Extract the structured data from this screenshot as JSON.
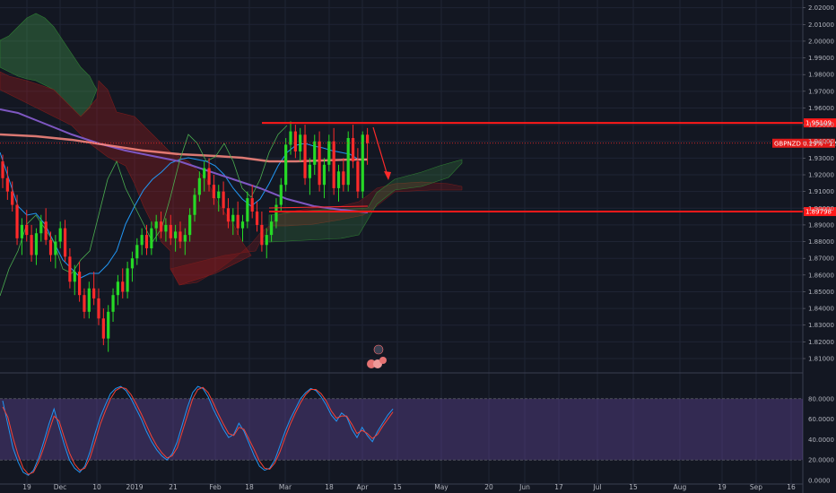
{
  "chart_data": {
    "type": "candlestick",
    "symbol_label": "GBPNZD 0.29% · 1.93891",
    "price_axis": {
      "range": [
        1.805,
        2.025
      ],
      "ticks": [
        "2.02000",
        "2.01000",
        "2.00000",
        "1.99000",
        "1.98000",
        "1.97000",
        "1.96000",
        "1.95000",
        "1.94000",
        "1.93000",
        "1.92000",
        "1.91000",
        "1.90000",
        "1.89000",
        "1.88000",
        "1.87000",
        "1.86000",
        "1.85000",
        "1.84000",
        "1.83000",
        "1.82000",
        "1.81000"
      ]
    },
    "time_axis": {
      "labels": [
        "19",
        "Dec",
        "10",
        "2019",
        "21",
        "Feb",
        "18",
        "Mar",
        "18",
        "Apr",
        "15",
        "May",
        "20",
        "Jun",
        "17",
        "Jul",
        "15",
        "Aug",
        "19",
        "Sep",
        "16"
      ]
    },
    "levels": [
      {
        "name": "resistance",
        "value": 1.95109,
        "label": "1.95109",
        "color": "#ff1a1a"
      },
      {
        "name": "support",
        "value": 1.89798,
        "label": "1.89798",
        "color": "#ff1a1a"
      }
    ],
    "candles": [
      [
        1.928,
        1.932,
        1.912,
        1.918
      ],
      [
        1.918,
        1.925,
        1.905,
        1.91
      ],
      [
        1.91,
        1.916,
        1.898,
        1.902
      ],
      [
        1.902,
        1.908,
        1.878,
        1.882
      ],
      [
        1.882,
        1.894,
        1.872,
        1.89
      ],
      [
        1.89,
        1.899,
        1.88,
        1.884
      ],
      [
        1.884,
        1.89,
        1.868,
        1.872
      ],
      [
        1.872,
        1.888,
        1.866,
        1.885
      ],
      [
        1.885,
        1.896,
        1.88,
        1.892
      ],
      [
        1.892,
        1.9,
        1.878,
        1.881
      ],
      [
        1.881,
        1.886,
        1.868,
        1.872
      ],
      [
        1.872,
        1.884,
        1.864,
        1.88
      ],
      [
        1.88,
        1.892,
        1.876,
        1.888
      ],
      [
        1.888,
        1.893,
        1.868,
        1.871
      ],
      [
        1.871,
        1.876,
        1.852,
        1.856
      ],
      [
        1.856,
        1.866,
        1.848,
        1.862
      ],
      [
        1.862,
        1.868,
        1.844,
        1.848
      ],
      [
        1.848,
        1.852,
        1.834,
        1.838
      ],
      [
        1.838,
        1.856,
        1.834,
        1.852
      ],
      [
        1.852,
        1.862,
        1.842,
        1.846
      ],
      [
        1.846,
        1.852,
        1.83,
        1.834
      ],
      [
        1.834,
        1.84,
        1.818,
        1.822
      ],
      [
        1.822,
        1.842,
        1.814,
        1.838
      ],
      [
        1.838,
        1.852,
        1.832,
        1.848
      ],
      [
        1.848,
        1.86,
        1.842,
        1.856
      ],
      [
        1.856,
        1.864,
        1.846,
        1.85
      ],
      [
        1.85,
        1.868,
        1.846,
        1.864
      ],
      [
        1.864,
        1.874,
        1.856,
        1.87
      ],
      [
        1.87,
        1.882,
        1.866,
        1.878
      ],
      [
        1.878,
        1.888,
        1.872,
        1.884
      ],
      [
        1.884,
        1.89,
        1.872,
        1.876
      ],
      [
        1.876,
        1.892,
        1.872,
        1.888
      ],
      [
        1.888,
        1.896,
        1.88,
        1.892
      ],
      [
        1.892,
        1.898,
        1.882,
        1.886
      ],
      [
        1.886,
        1.894,
        1.88,
        1.89
      ],
      [
        1.89,
        1.896,
        1.878,
        1.882
      ],
      [
        1.882,
        1.89,
        1.874,
        1.886
      ],
      [
        1.886,
        1.892,
        1.876,
        1.88
      ],
      [
        1.88,
        1.888,
        1.872,
        1.884
      ],
      [
        1.884,
        1.9,
        1.88,
        1.896
      ],
      [
        1.896,
        1.912,
        1.892,
        1.908
      ],
      [
        1.908,
        1.922,
        1.904,
        1.918
      ],
      [
        1.918,
        1.928,
        1.91,
        1.924
      ],
      [
        1.924,
        1.93,
        1.91,
        1.914
      ],
      [
        1.914,
        1.92,
        1.902,
        1.906
      ],
      [
        1.906,
        1.914,
        1.898,
        1.91
      ],
      [
        1.91,
        1.916,
        1.896,
        1.9
      ],
      [
        1.9,
        1.906,
        1.888,
        1.892
      ],
      [
        1.892,
        1.9,
        1.884,
        1.896
      ],
      [
        1.896,
        1.904,
        1.884,
        1.888
      ],
      [
        1.888,
        1.896,
        1.88,
        1.892
      ],
      [
        1.892,
        1.91,
        1.888,
        1.906
      ],
      [
        1.906,
        1.914,
        1.894,
        1.898
      ],
      [
        1.898,
        1.904,
        1.886,
        1.89
      ],
      [
        1.89,
        1.898,
        1.874,
        1.878
      ],
      [
        1.878,
        1.888,
        1.87,
        1.884
      ],
      [
        1.884,
        1.896,
        1.88,
        1.892
      ],
      [
        1.892,
        1.906,
        1.888,
        1.902
      ],
      [
        1.902,
        1.918,
        1.898,
        1.914
      ],
      [
        1.914,
        1.942,
        1.91,
        1.938
      ],
      [
        1.938,
        1.952,
        1.932,
        1.946
      ],
      [
        1.946,
        1.95,
        1.93,
        1.934
      ],
      [
        1.934,
        1.948,
        1.928,
        1.944
      ],
      [
        1.944,
        1.95,
        1.914,
        1.918
      ],
      [
        1.918,
        1.93,
        1.908,
        1.926
      ],
      [
        1.926,
        1.944,
        1.92,
        1.94
      ],
      [
        1.94,
        1.946,
        1.91,
        1.914
      ],
      [
        1.914,
        1.93,
        1.906,
        1.926
      ],
      [
        1.926,
        1.944,
        1.922,
        1.94
      ],
      [
        1.94,
        1.948,
        1.908,
        1.912
      ],
      [
        1.912,
        1.926,
        1.904,
        1.922
      ],
      [
        1.922,
        1.93,
        1.91,
        1.914
      ],
      [
        1.914,
        1.946,
        1.91,
        1.942
      ],
      [
        1.942,
        1.95,
        1.924,
        1.928
      ],
      [
        1.928,
        1.936,
        1.906,
        1.91
      ],
      [
        1.91,
        1.946,
        1.906,
        1.944
      ],
      [
        1.944,
        1.948,
        1.926,
        1.939
      ]
    ],
    "stochastic": {
      "range": [
        0,
        100
      ],
      "ticks": [
        "80.0000",
        "60.0000",
        "40.0000",
        "20.0000",
        "0.0000"
      ],
      "upper_band": 80,
      "lower_band": 20,
      "k": [
        78,
        55,
        32,
        18,
        8,
        5,
        10,
        22,
        38,
        55,
        70,
        52,
        35,
        20,
        12,
        8,
        14,
        28,
        46,
        62,
        74,
        85,
        90,
        92,
        88,
        80,
        70,
        60,
        48,
        38,
        30,
        24,
        20,
        26,
        38,
        55,
        72,
        86,
        92,
        90,
        82,
        70,
        60,
        50,
        42,
        45,
        56,
        48,
        36,
        24,
        14,
        10,
        12,
        20,
        34,
        48,
        60,
        70,
        80,
        86,
        90,
        88,
        82,
        74,
        64,
        58,
        66,
        62,
        50,
        42,
        52,
        44,
        38,
        48,
        56,
        64,
        70
      ],
      "d": [
        72,
        62,
        42,
        25,
        12,
        6,
        8,
        18,
        32,
        48,
        63,
        58,
        42,
        27,
        16,
        10,
        12,
        22,
        38,
        55,
        68,
        80,
        88,
        91,
        90,
        84,
        75,
        65,
        54,
        43,
        34,
        27,
        22,
        24,
        32,
        48,
        64,
        80,
        89,
        91,
        86,
        76,
        65,
        55,
        46,
        44,
        52,
        50,
        40,
        30,
        19,
        12,
        11,
        17,
        28,
        42,
        55,
        66,
        76,
        84,
        89,
        89,
        85,
        78,
        68,
        61,
        63,
        63,
        55,
        46,
        49,
        46,
        41,
        45,
        53,
        60,
        67
      ]
    },
    "series": [
      {
        "name": "ema_short",
        "color": "#ff8a80"
      },
      {
        "name": "ema_long",
        "color": "#7e57c2"
      },
      {
        "name": "kijun",
        "color": "#2196f3"
      },
      {
        "name": "chikou",
        "color": "#4caf50"
      }
    ]
  }
}
